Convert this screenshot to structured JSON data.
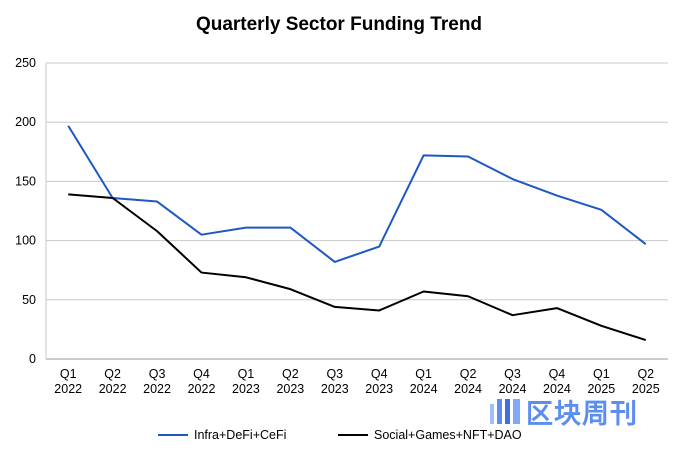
{
  "chart_data": {
    "type": "line",
    "title": "Quarterly Sector Funding Trend",
    "xlabel": "",
    "ylabel": "",
    "categories": [
      [
        "Q1",
        "2022"
      ],
      [
        "Q2",
        "2022"
      ],
      [
        "Q3",
        "2022"
      ],
      [
        "Q4",
        "2022"
      ],
      [
        "Q1",
        "2023"
      ],
      [
        "Q2",
        "2023"
      ],
      [
        "Q3",
        "2023"
      ],
      [
        "Q4",
        "2023"
      ],
      [
        "Q1",
        "2024"
      ],
      [
        "Q2",
        "2024"
      ],
      [
        "Q3",
        "2024"
      ],
      [
        "Q4",
        "2024"
      ],
      [
        "Q1",
        "2025"
      ],
      [
        "Q2",
        "2025"
      ]
    ],
    "ylim": [
      0,
      250
    ],
    "yticks": [
      0,
      50,
      100,
      150,
      200,
      250
    ],
    "grid": true,
    "legend_position": "bottom",
    "series": [
      {
        "name": "Infra+DeFi+CeFi",
        "color": "#1f57c3",
        "values": [
          197,
          136,
          133,
          105,
          111,
          111,
          82,
          95,
          172,
          171,
          152,
          138,
          126,
          97
        ]
      },
      {
        "name": "Social+Games+NFT+DAO",
        "color": "#000000",
        "values": [
          139,
          136,
          108,
          73,
          69,
          59,
          44,
          41,
          57,
          53,
          37,
          43,
          28,
          16
        ]
      }
    ]
  },
  "watermark": {
    "text": "区块周刊",
    "logo_icon": "brand-logo-icon",
    "color": "#5b8ef0"
  }
}
